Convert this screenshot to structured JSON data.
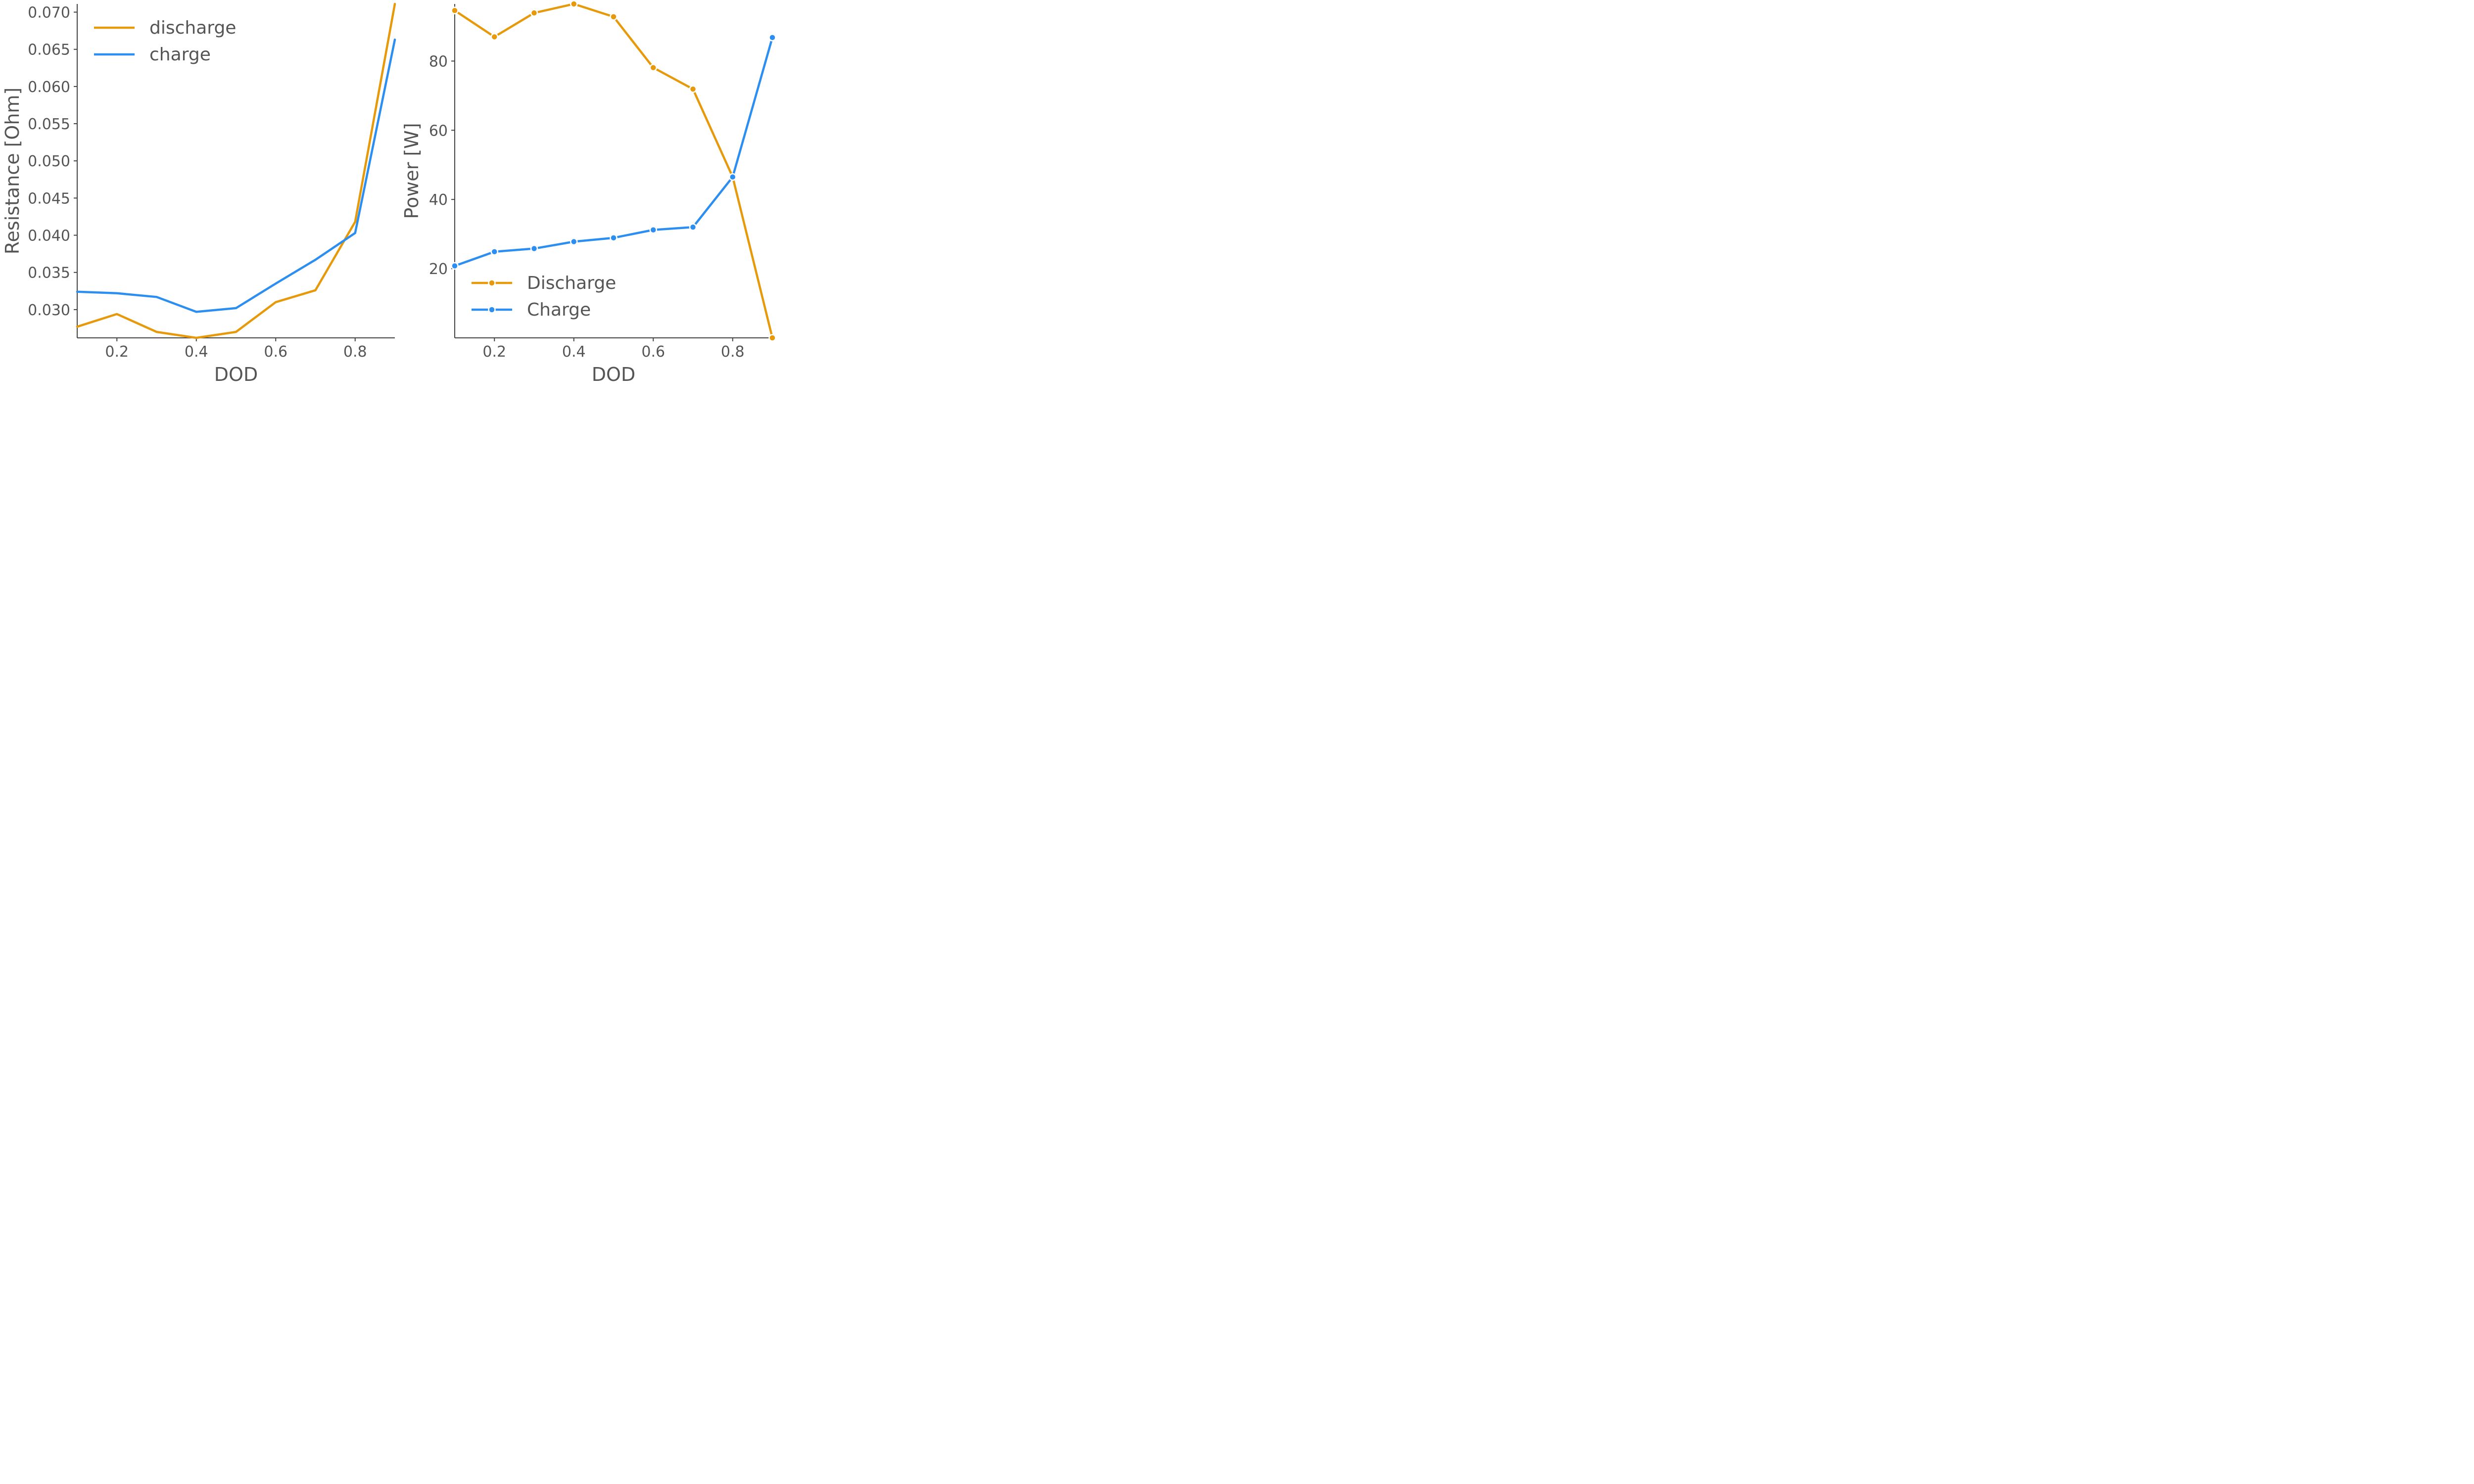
{
  "colors": {
    "discharge": "#E69A0B",
    "charge": "#2C8EF0",
    "axis": "#444444",
    "text": "#555555"
  },
  "chart_data": [
    {
      "type": "line",
      "title": "",
      "xlabel": "DOD",
      "ylabel": "Resistance [Ohm]",
      "xlim": [
        0.1,
        0.9
      ],
      "ylim": [
        0.0262,
        0.0711
      ],
      "xticks": [
        0.2,
        0.4,
        0.6,
        0.8
      ],
      "xtick_labels": [
        "0.2",
        "0.4",
        "0.6",
        "0.8"
      ],
      "yticks": [
        0.03,
        0.035,
        0.04,
        0.045,
        0.05,
        0.055,
        0.06,
        0.065,
        0.07
      ],
      "ytick_labels": [
        "0.030",
        "0.035",
        "0.040",
        "0.045",
        "0.050",
        "0.055",
        "0.060",
        "0.065",
        "0.070"
      ],
      "grid": false,
      "legend_position": "top-left",
      "markers": false,
      "x": [
        0.1,
        0.2,
        0.3,
        0.4,
        0.5,
        0.6,
        0.7,
        0.8,
        0.9
      ],
      "series": [
        {
          "name": "discharge",
          "color": "#E69A0B",
          "values": [
            0.0277,
            0.0294,
            0.027,
            0.0262,
            0.027,
            0.031,
            0.0326,
            0.0418,
            0.0711
          ]
        },
        {
          "name": "charge",
          "color": "#2C8EF0",
          "values": [
            0.0324,
            0.0322,
            0.0317,
            0.0297,
            0.0302,
            0.0335,
            0.0367,
            0.0403,
            0.0663
          ]
        }
      ]
    },
    {
      "type": "line",
      "title": "",
      "xlabel": "DOD",
      "ylabel": "Power [W]",
      "xlim": [
        0.1,
        0.9
      ],
      "ylim": [
        0.0,
        96.5
      ],
      "xticks": [
        0.2,
        0.4,
        0.6,
        0.8
      ],
      "xtick_labels": [
        "0.2",
        "0.4",
        "0.6",
        "0.8"
      ],
      "yticks": [
        20,
        40,
        60,
        80
      ],
      "ytick_labels": [
        "20",
        "40",
        "60",
        "80"
      ],
      "grid": false,
      "legend_position": "bottom-left",
      "markers": true,
      "x": [
        0.1,
        0.2,
        0.3,
        0.4,
        0.5,
        0.6,
        0.7,
        0.8,
        0.9
      ],
      "series": [
        {
          "name": "Discharge",
          "color": "#E69A0B",
          "values": [
            94.6,
            87.0,
            93.9,
            96.5,
            92.8,
            78.1,
            71.9,
            46.5,
            0.0
          ]
        },
        {
          "name": "Charge",
          "color": "#2C8EF0",
          "values": [
            20.8,
            24.9,
            25.8,
            27.8,
            28.9,
            31.2,
            32.0,
            46.5,
            86.8
          ]
        }
      ]
    }
  ]
}
